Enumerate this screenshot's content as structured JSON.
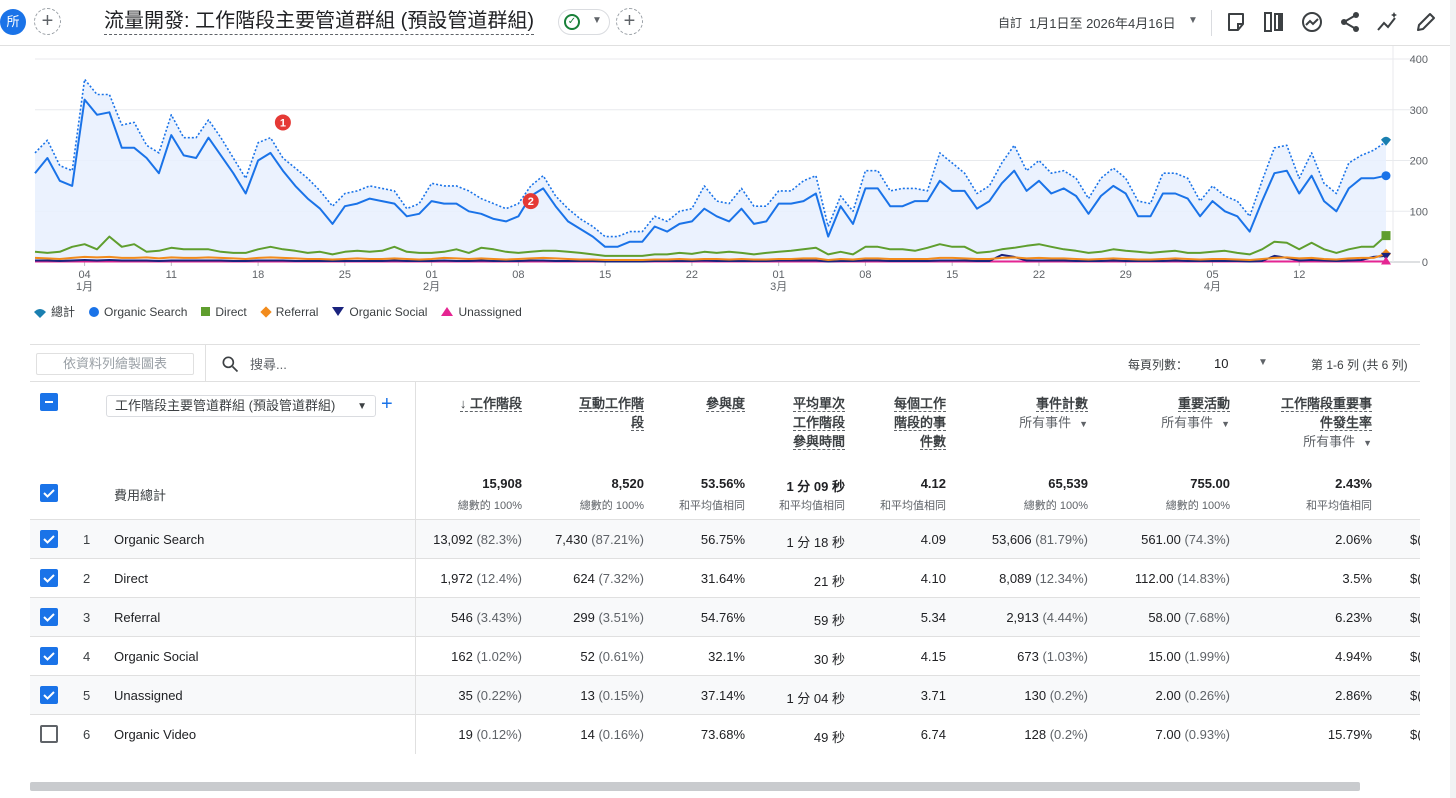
{
  "header": {
    "avatar_label": "所",
    "add_button": "+",
    "title": "流量開發: 工作階段主要管道群組 (預設管道群組)",
    "add_comparison": "+",
    "date_prefix": "自訂",
    "date_range": "1月1日至 2026年4月16日",
    "icons": [
      "insights-note-icon",
      "compare-columns-icon",
      "trend-icon",
      "share-icon",
      "sparkle-insights-icon",
      "edit-pencil-icon"
    ]
  },
  "chart_data": {
    "type": "line",
    "title": "",
    "xlabel": "",
    "ylabel": "",
    "ylim": [
      0,
      400
    ],
    "y_ticks": [
      "0",
      "100",
      "200",
      "300",
      "400"
    ],
    "x_ticks": [
      {
        "day": 4,
        "label": "04",
        "sub": "1月"
      },
      {
        "day": 11,
        "label": "11",
        "sub": ""
      },
      {
        "day": 18,
        "label": "18",
        "sub": ""
      },
      {
        "day": 25,
        "label": "25",
        "sub": ""
      },
      {
        "day": 32,
        "label": "01",
        "sub": "2月"
      },
      {
        "day": 39,
        "label": "08",
        "sub": ""
      },
      {
        "day": 46,
        "label": "15",
        "sub": ""
      },
      {
        "day": 53,
        "label": "22",
        "sub": ""
      },
      {
        "day": 60,
        "label": "01",
        "sub": "3月"
      },
      {
        "day": 67,
        "label": "08",
        "sub": ""
      },
      {
        "day": 74,
        "label": "15",
        "sub": ""
      },
      {
        "day": 81,
        "label": "22",
        "sub": ""
      },
      {
        "day": 88,
        "label": "29",
        "sub": ""
      },
      {
        "day": 95,
        "label": "05",
        "sub": "4月"
      },
      {
        "day": 102,
        "label": "12",
        "sub": ""
      }
    ],
    "annotations": [
      {
        "label": "1",
        "day": 20,
        "y": 275
      },
      {
        "label": "2",
        "day": 40,
        "y": 120
      }
    ],
    "grid": true,
    "legend_position": "bottom-left",
    "series": [
      {
        "name": "總計",
        "color": "#1a73e8",
        "style": "dotted",
        "marker": "drop",
        "values": [
          215,
          240,
          190,
          180,
          360,
          330,
          330,
          270,
          275,
          230,
          215,
          290,
          245,
          245,
          280,
          245,
          205,
          165,
          235,
          245,
          205,
          185,
          165,
          140,
          110,
          135,
          140,
          150,
          145,
          140,
          105,
          115,
          155,
          150,
          150,
          140,
          125,
          115,
          105,
          115,
          150,
          170,
          130,
          105,
          85,
          70,
          50,
          50,
          60,
          60,
          90,
          80,
          100,
          105,
          150,
          120,
          115,
          145,
          110,
          110,
          140,
          140,
          160,
          170,
          70,
          130,
          100,
          180,
          180,
          140,
          145,
          145,
          140,
          215,
          195,
          175,
          135,
          150,
          195,
          230,
          180,
          200,
          175,
          180,
          165,
          125,
          165,
          185,
          165,
          120,
          115,
          175,
          175,
          165,
          120,
          150,
          130,
          120,
          90,
          160,
          225,
          230,
          165,
          215,
          155,
          135,
          195,
          210,
          220,
          237
        ]
      },
      {
        "name": "Organic Search",
        "color": "#1a73e8",
        "style": "solid",
        "marker": "dot",
        "values": [
          175,
          205,
          160,
          150,
          320,
          290,
          295,
          225,
          225,
          205,
          175,
          250,
          210,
          205,
          245,
          210,
          175,
          135,
          200,
          215,
          180,
          150,
          125,
          105,
          75,
          110,
          115,
          125,
          120,
          115,
          90,
          95,
          120,
          115,
          115,
          100,
          95,
          85,
          80,
          90,
          130,
          145,
          110,
          80,
          65,
          50,
          30,
          30,
          40,
          40,
          70,
          60,
          75,
          80,
          105,
          90,
          80,
          105,
          75,
          80,
          115,
          115,
          120,
          135,
          50,
          110,
          75,
          145,
          145,
          110,
          110,
          120,
          120,
          160,
          140,
          140,
          105,
          120,
          155,
          180,
          140,
          160,
          135,
          145,
          130,
          95,
          130,
          150,
          135,
          90,
          90,
          135,
          135,
          125,
          90,
          120,
          100,
          90,
          60,
          120,
          175,
          180,
          135,
          170,
          120,
          100,
          145,
          165,
          165,
          170
        ]
      },
      {
        "name": "Direct",
        "color": "#5f9e2e",
        "style": "solid",
        "marker": "square",
        "values": [
          20,
          18,
          20,
          30,
          35,
          25,
          50,
          30,
          35,
          20,
          22,
          28,
          25,
          25,
          25,
          20,
          18,
          18,
          25,
          30,
          25,
          22,
          18,
          20,
          15,
          20,
          22,
          20,
          22,
          30,
          20,
          18,
          18,
          20,
          25,
          18,
          28,
          25,
          20,
          18,
          20,
          22,
          22,
          20,
          18,
          15,
          12,
          12,
          12,
          12,
          15,
          15,
          18,
          16,
          20,
          18,
          20,
          18,
          15,
          18,
          20,
          22,
          25,
          28,
          15,
          20,
          15,
          30,
          30,
          25,
          25,
          22,
          28,
          35,
          30,
          30,
          18,
          20,
          25,
          28,
          32,
          35,
          30,
          25,
          22,
          18,
          20,
          25,
          22,
          20,
          18,
          20,
          22,
          18,
          18,
          20,
          22,
          18,
          15,
          25,
          40,
          38,
          25,
          38,
          25,
          18,
          25,
          30,
          30,
          52
        ]
      },
      {
        "name": "Referral",
        "color": "#f28b1c",
        "style": "solid",
        "marker": "diamond",
        "values": [
          8,
          7,
          6,
          8,
          10,
          9,
          10,
          8,
          8,
          9,
          7,
          9,
          8,
          8,
          9,
          8,
          7,
          6,
          8,
          9,
          8,
          7,
          6,
          6,
          5,
          6,
          7,
          6,
          6,
          7,
          6,
          5,
          6,
          8,
          7,
          6,
          7,
          6,
          5,
          6,
          7,
          8,
          7,
          6,
          5,
          5,
          4,
          4,
          4,
          4,
          5,
          5,
          6,
          5,
          6,
          6,
          5,
          6,
          5,
          5,
          6,
          6,
          7,
          7,
          4,
          6,
          5,
          7,
          7,
          6,
          6,
          6,
          6,
          8,
          8,
          7,
          6,
          6,
          8,
          9,
          7,
          8,
          7,
          7,
          6,
          5,
          6,
          7,
          6,
          5,
          5,
          6,
          7,
          6,
          5,
          6,
          6,
          5,
          4,
          6,
          8,
          9,
          7,
          8,
          6,
          5,
          7,
          8,
          8,
          16
        ]
      },
      {
        "name": "Organic Social",
        "color": "#1a237e",
        "style": "solid",
        "marker": "triangle-down",
        "values": [
          3,
          3,
          2,
          3,
          4,
          3,
          4,
          3,
          3,
          3,
          2,
          3,
          3,
          3,
          3,
          3,
          2,
          2,
          3,
          3,
          3,
          2,
          2,
          2,
          2,
          2,
          2,
          2,
          2,
          3,
          2,
          2,
          2,
          3,
          2,
          2,
          3,
          2,
          2,
          2,
          3,
          3,
          2,
          2,
          2,
          2,
          1,
          1,
          1,
          1,
          2,
          2,
          2,
          2,
          3,
          2,
          2,
          2,
          2,
          2,
          3,
          3,
          3,
          3,
          1,
          2,
          2,
          3,
          3,
          2,
          2,
          2,
          2,
          3,
          3,
          3,
          2,
          2,
          14,
          10,
          3,
          3,
          3,
          3,
          2,
          2,
          2,
          3,
          2,
          2,
          2,
          2,
          3,
          2,
          2,
          2,
          2,
          2,
          1,
          2,
          12,
          8,
          3,
          4,
          3,
          2,
          3,
          4,
          10,
          12
        ]
      },
      {
        "name": "Unassigned",
        "color": "#e52592",
        "style": "solid",
        "marker": "triangle-up",
        "values": [
          1,
          1,
          1,
          1,
          1,
          1,
          1,
          1,
          1,
          1,
          1,
          1,
          1,
          1,
          1,
          1,
          1,
          1,
          1,
          1,
          1,
          1,
          1,
          1,
          1,
          1,
          1,
          1,
          1,
          1,
          1,
          1,
          1,
          1,
          1,
          1,
          1,
          1,
          1,
          1,
          1,
          1,
          1,
          1,
          1,
          1,
          1,
          1,
          1,
          1,
          1,
          1,
          1,
          1,
          1,
          1,
          1,
          1,
          1,
          1,
          1,
          1,
          1,
          1,
          1,
          1,
          1,
          1,
          1,
          1,
          1,
          1,
          1,
          1,
          1,
          1,
          1,
          1,
          1,
          1,
          1,
          1,
          1,
          1,
          1,
          1,
          1,
          1,
          1,
          1,
          1,
          1,
          1,
          1,
          1,
          1,
          1,
          1,
          1,
          1,
          1,
          1,
          1,
          1,
          1,
          1,
          1,
          1,
          1,
          1
        ]
      }
    ]
  },
  "toolbar": {
    "plot_rows_label": "依資料列繪製圖表",
    "search_placeholder": "搜尋...",
    "rows_per_page_label": "每頁列數：",
    "rows_per_page_value": "10",
    "pager": "第 1-6 列 (共 6 列)"
  },
  "table": {
    "dimension_select": "工作階段主要管道群組 (預設管道群組)",
    "add_dimension": "+",
    "columns": [
      {
        "lines": [
          "↓ 工作階段"
        ],
        "sub": ""
      },
      {
        "lines": [
          "互動工作階",
          "段"
        ],
        "sub": ""
      },
      {
        "lines": [
          "參與度"
        ],
        "sub": ""
      },
      {
        "lines": [
          "平均單次",
          "工作階段",
          "參與時間"
        ],
        "sub": ""
      },
      {
        "lines": [
          "每個工作",
          "階段的事",
          "件數"
        ],
        "sub": ""
      },
      {
        "lines": [
          "事件計數"
        ],
        "sub": "所有事件"
      },
      {
        "lines": [
          "重要活動"
        ],
        "sub": "所有事件"
      },
      {
        "lines": [
          "工作階段重要事",
          "件發生率"
        ],
        "sub": "所有事件"
      }
    ],
    "totals_label": "費用總計",
    "totals": [
      {
        "value": "15,908",
        "sub": "總數的 100%"
      },
      {
        "value": "8,520",
        "sub": "總數的 100%"
      },
      {
        "value": "53.56%",
        "sub": "和平均值相同"
      },
      {
        "value": "1 分 09 秒",
        "sub": "和平均值相同"
      },
      {
        "value": "4.12",
        "sub": "和平均值相同"
      },
      {
        "value": "65,539",
        "sub": "總數的 100%"
      },
      {
        "value": "755.00",
        "sub": "總數的 100%"
      },
      {
        "value": "2.43%",
        "sub": "和平均值相同"
      }
    ],
    "rows": [
      {
        "idx": "1",
        "name": "Organic Search",
        "checked": true,
        "cells": [
          [
            "13,092",
            "(82.3%)"
          ],
          [
            "7,430",
            "(87.21%)"
          ],
          [
            "56.75%",
            ""
          ],
          [
            "1 分 18 秒",
            ""
          ],
          [
            "4.09",
            ""
          ],
          [
            "53,606",
            "(81.79%)"
          ],
          [
            "561.00",
            "(74.3%)"
          ],
          [
            "2.06%",
            ""
          ]
        ],
        "cut": "$("
      },
      {
        "idx": "2",
        "name": "Direct",
        "checked": true,
        "cells": [
          [
            "1,972",
            "(12.4%)"
          ],
          [
            "624",
            "(7.32%)"
          ],
          [
            "31.64%",
            ""
          ],
          [
            "21 秒",
            ""
          ],
          [
            "4.10",
            ""
          ],
          [
            "8,089",
            "(12.34%)"
          ],
          [
            "112.00",
            "(14.83%)"
          ],
          [
            "3.5%",
            ""
          ]
        ],
        "cut": "$("
      },
      {
        "idx": "3",
        "name": "Referral",
        "checked": true,
        "cells": [
          [
            "546",
            "(3.43%)"
          ],
          [
            "299",
            "(3.51%)"
          ],
          [
            "54.76%",
            ""
          ],
          [
            "59 秒",
            ""
          ],
          [
            "5.34",
            ""
          ],
          [
            "2,913",
            "(4.44%)"
          ],
          [
            "58.00",
            "(7.68%)"
          ],
          [
            "6.23%",
            ""
          ]
        ],
        "cut": "$("
      },
      {
        "idx": "4",
        "name": "Organic Social",
        "checked": true,
        "cells": [
          [
            "162",
            "(1.02%)"
          ],
          [
            "52",
            "(0.61%)"
          ],
          [
            "32.1%",
            ""
          ],
          [
            "30 秒",
            ""
          ],
          [
            "4.15",
            ""
          ],
          [
            "673",
            "(1.03%)"
          ],
          [
            "15.00",
            "(1.99%)"
          ],
          [
            "4.94%",
            ""
          ]
        ],
        "cut": "$("
      },
      {
        "idx": "5",
        "name": "Unassigned",
        "checked": true,
        "cells": [
          [
            "35",
            "(0.22%)"
          ],
          [
            "13",
            "(0.15%)"
          ],
          [
            "37.14%",
            ""
          ],
          [
            "1 分 04 秒",
            ""
          ],
          [
            "3.71",
            ""
          ],
          [
            "130",
            "(0.2%)"
          ],
          [
            "2.00",
            "(0.26%)"
          ],
          [
            "2.86%",
            ""
          ]
        ],
        "cut": "$("
      },
      {
        "idx": "6",
        "name": "Organic Video",
        "checked": false,
        "cells": [
          [
            "19",
            "(0.12%)"
          ],
          [
            "14",
            "(0.16%)"
          ],
          [
            "73.68%",
            ""
          ],
          [
            "49 秒",
            ""
          ],
          [
            "6.74",
            ""
          ],
          [
            "128",
            "(0.2%)"
          ],
          [
            "7.00",
            "(0.93%)"
          ],
          [
            "15.79%",
            ""
          ]
        ],
        "cut": "$("
      }
    ]
  }
}
